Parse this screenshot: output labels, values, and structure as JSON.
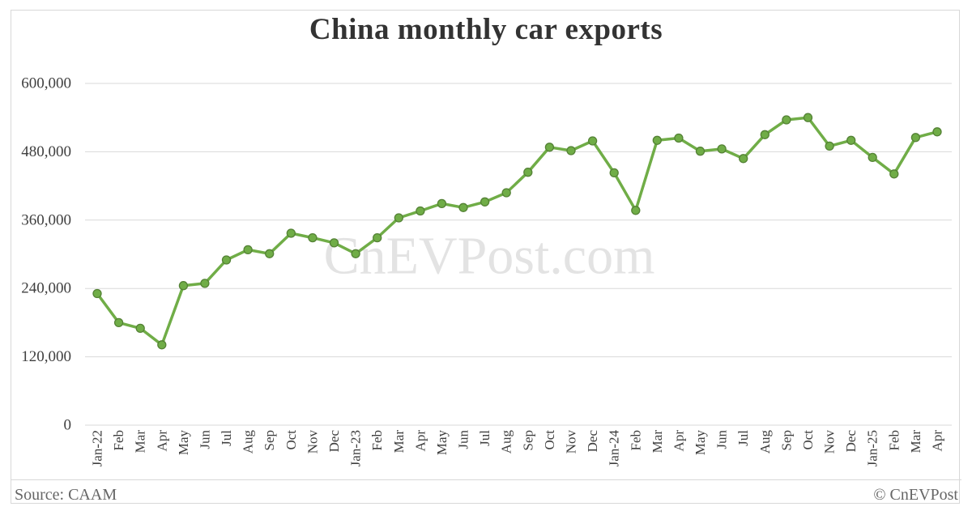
{
  "title": "China monthly car exports",
  "watermark": "CnEVPost.com",
  "footer": {
    "source": "Source: CAAM",
    "copyright": "© CnEVPost"
  },
  "colors": {
    "line": "#70ad47",
    "marker_fill": "#70ad47",
    "marker_stroke": "#548235",
    "grid": "#d9d9d9",
    "axis_text": "#404040",
    "title_text": "#333333",
    "footer_text": "#666666",
    "watermark": "#e3e3e3",
    "frame": "#d8d8d8",
    "background": "#ffffff"
  },
  "chart_data": {
    "type": "line",
    "title": "China monthly car exports",
    "xlabel": "",
    "ylabel": "",
    "ylim": [
      0,
      600000
    ],
    "yticks": [
      0,
      120000,
      240000,
      360000,
      480000,
      600000
    ],
    "ytick_labels": [
      "0",
      "120,000",
      "240,000",
      "360,000",
      "480,000",
      "600,000"
    ],
    "grid": "horizontal",
    "legend": "none",
    "marker": "circle",
    "categories": [
      "Jan-22",
      "Feb",
      "Mar",
      "Apr",
      "May",
      "Jun",
      "Jul",
      "Aug",
      "Sep",
      "Oct",
      "Nov",
      "Dec",
      "Jan-23",
      "Feb",
      "Mar",
      "Apr",
      "May",
      "Jun",
      "Jul",
      "Aug",
      "Sep",
      "Oct",
      "Nov",
      "Dec",
      "Jan-24",
      "Feb",
      "Mar",
      "Apr",
      "May",
      "Jun",
      "Jul",
      "Aug",
      "Sep",
      "Oct",
      "Nov",
      "Dec",
      "Jan-25",
      "Feb",
      "Mar",
      "Apr"
    ],
    "values": [
      231000,
      180000,
      170000,
      141000,
      245000,
      249000,
      290000,
      308000,
      301000,
      337000,
      329000,
      320000,
      301000,
      329000,
      364000,
      376000,
      389000,
      382000,
      392000,
      408000,
      444000,
      488000,
      482000,
      499000,
      443000,
      377000,
      500000,
      504000,
      481000,
      485000,
      468000,
      510000,
      536000,
      540000,
      490000,
      500000,
      470000,
      441000,
      505000,
      515000
    ]
  }
}
